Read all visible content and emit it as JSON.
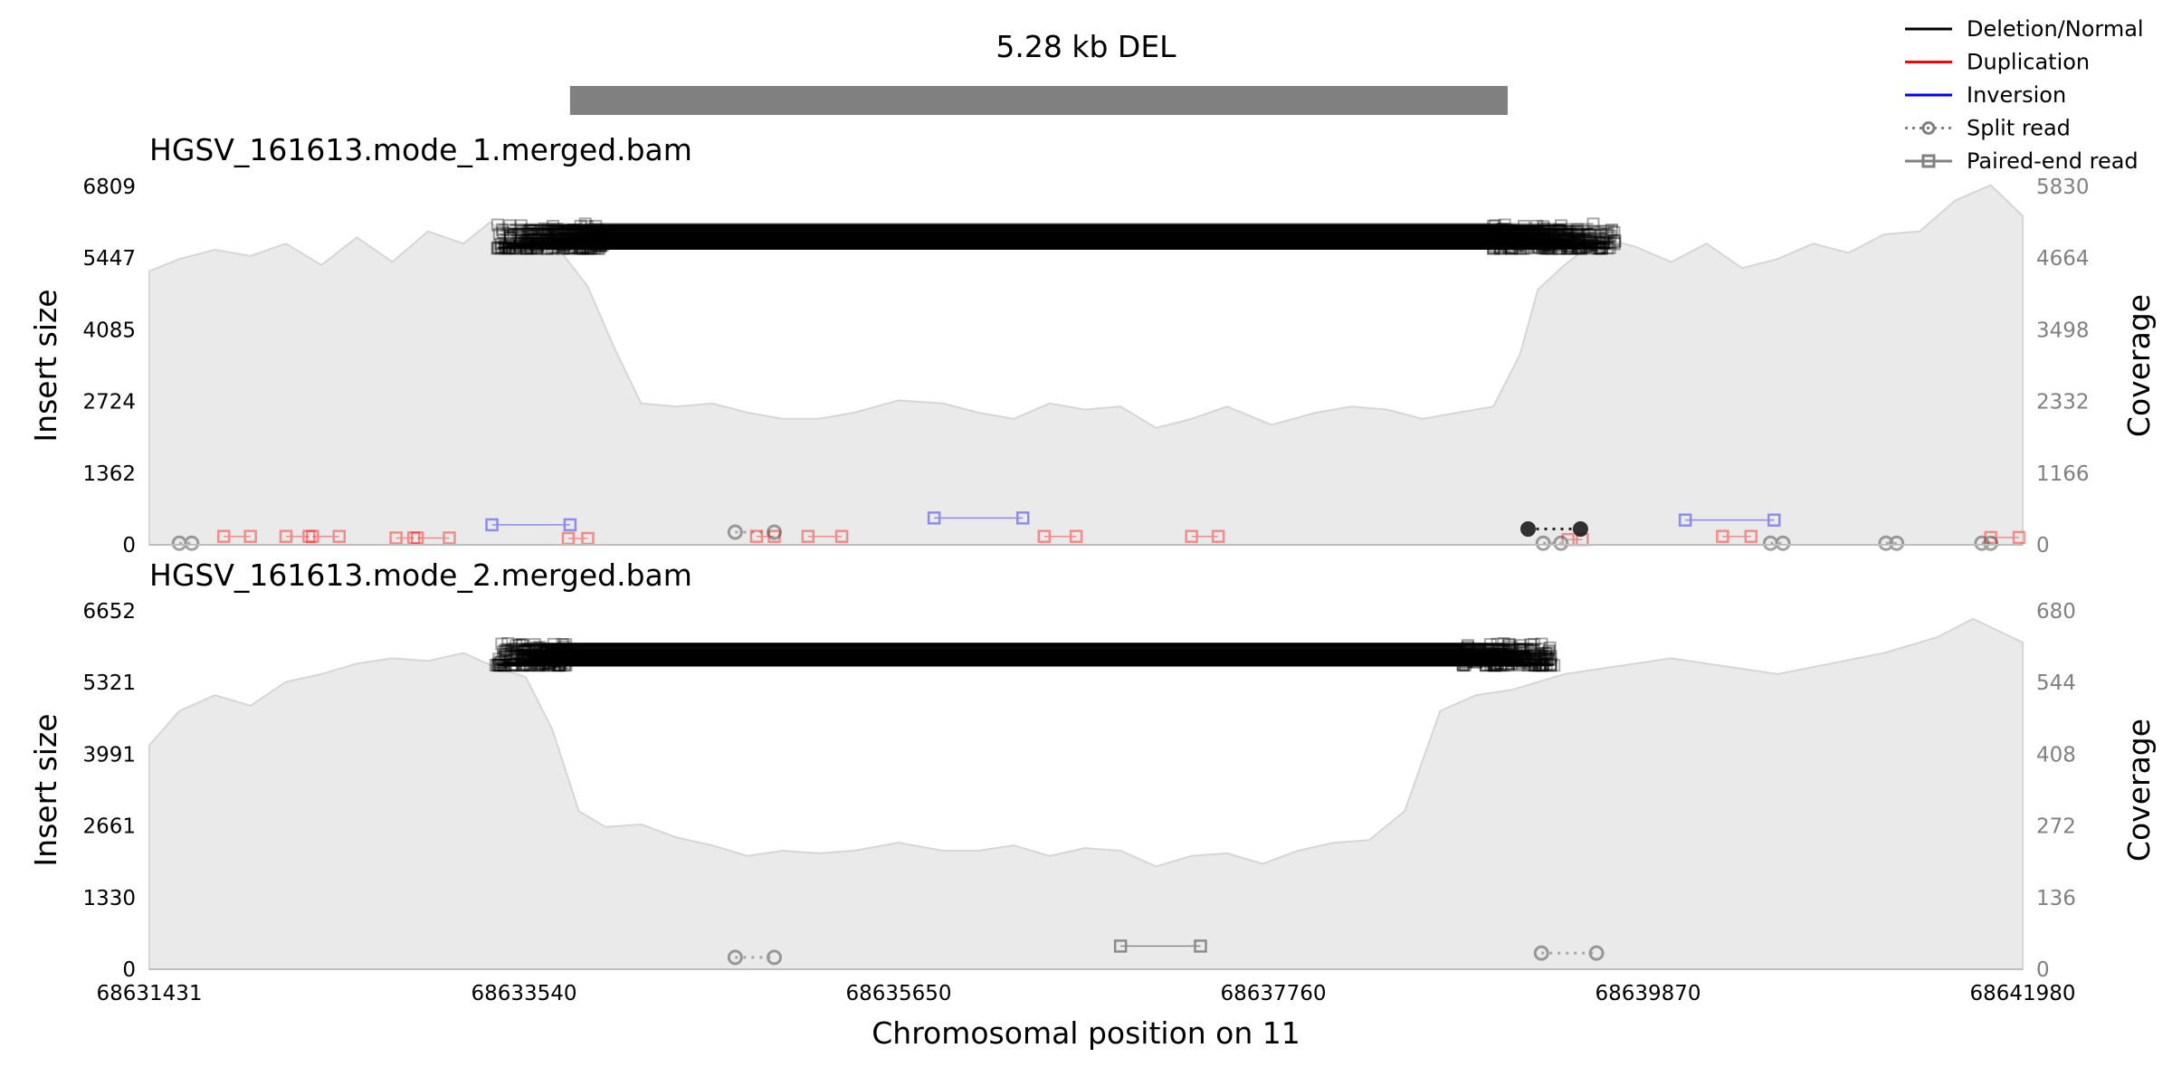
{
  "chart_data": {
    "type": "line",
    "title": "5.28 kb DEL",
    "sv": {
      "start": 68633800,
      "end": 68639080
    },
    "xlabel": "Chromosomal position on 11",
    "xlim": [
      68631431,
      68641980
    ],
    "xticks": [
      "68631431",
      "68633540",
      "68635650",
      "68637760",
      "68639870",
      "68641980"
    ],
    "legend": {
      "position": "top-right",
      "entries": [
        {
          "label": "Deletion/Normal",
          "color": "#000000",
          "style": "solid"
        },
        {
          "label": "Duplication",
          "color": "#ff0000",
          "style": "solid"
        },
        {
          "label": "Inversion",
          "color": "#0000ff",
          "style": "solid"
        },
        {
          "label": "Split read",
          "color": "#808080",
          "style": "dotted-circle"
        },
        {
          "label": "Paired-end read",
          "color": "#808080",
          "style": "solid-square"
        }
      ]
    },
    "panels": [
      {
        "title": "HGSV_161613.mode_1.merged.bam",
        "ylabel": "Insert size",
        "y2label": "Coverage",
        "yticks": [
          "0",
          "1362",
          "2724",
          "4085",
          "5447",
          "6809"
        ],
        "y2ticks": [
          "0",
          "1166",
          "2332",
          "3498",
          "4664",
          "5830"
        ],
        "ylim": [
          0,
          6809
        ],
        "y2lim": [
          0,
          5830
        ],
        "coverage": [
          [
            68631431,
            4450
          ],
          [
            68631600,
            4650
          ],
          [
            68631800,
            4800
          ],
          [
            68632000,
            4700
          ],
          [
            68632200,
            4900
          ],
          [
            68632400,
            4550
          ],
          [
            68632600,
            5000
          ],
          [
            68632800,
            4600
          ],
          [
            68633000,
            5100
          ],
          [
            68633200,
            4900
          ],
          [
            68633350,
            5250
          ],
          [
            68633500,
            4900
          ],
          [
            68633700,
            4950
          ],
          [
            68633900,
            4200
          ],
          [
            68634050,
            3200
          ],
          [
            68634200,
            2300
          ],
          [
            68634400,
            2250
          ],
          [
            68634600,
            2300
          ],
          [
            68634800,
            2150
          ],
          [
            68635000,
            2050
          ],
          [
            68635200,
            2050
          ],
          [
            68635400,
            2150
          ],
          [
            68635650,
            2350
          ],
          [
            68635900,
            2300
          ],
          [
            68636100,
            2150
          ],
          [
            68636300,
            2050
          ],
          [
            68636500,
            2300
          ],
          [
            68636700,
            2200
          ],
          [
            68636900,
            2250
          ],
          [
            68637100,
            1900
          ],
          [
            68637300,
            2050
          ],
          [
            68637500,
            2250
          ],
          [
            68637750,
            1950
          ],
          [
            68638000,
            2150
          ],
          [
            68638200,
            2250
          ],
          [
            68638400,
            2200
          ],
          [
            68638600,
            2050
          ],
          [
            68638800,
            2150
          ],
          [
            68639000,
            2250
          ],
          [
            68639150,
            3100
          ],
          [
            68639250,
            4150
          ],
          [
            68639400,
            4550
          ],
          [
            68639600,
            5000
          ],
          [
            68639800,
            4850
          ],
          [
            68640000,
            4600
          ],
          [
            68640200,
            4900
          ],
          [
            68640400,
            4500
          ],
          [
            68640600,
            4650
          ],
          [
            68640800,
            4900
          ],
          [
            68641000,
            4750
          ],
          [
            68641200,
            5050
          ],
          [
            68641400,
            5100
          ],
          [
            68641600,
            5600
          ],
          [
            68641800,
            5850
          ],
          [
            68641980,
            5350
          ]
        ],
        "deletion_reads": {
          "count": 400,
          "left": [
            68633390,
            68633990
          ],
          "right": [
            68638990,
            68639710
          ],
          "insert_size": [
            5630,
            6100
          ]
        },
        "split_reads": [
          {
            "start": 68634730,
            "end": 68634950,
            "insert_size": 240,
            "type": "normal"
          },
          {
            "start": 68639195,
            "end": 68639490,
            "insert_size": 300,
            "type": "deletion"
          },
          {
            "start": 68631600,
            "end": 68631670,
            "insert_size": 30,
            "type": "normal"
          },
          {
            "start": 68639280,
            "end": 68639380,
            "insert_size": 30,
            "type": "normal"
          },
          {
            "start": 68640560,
            "end": 68640630,
            "insert_size": 30,
            "type": "normal"
          },
          {
            "start": 68641210,
            "end": 68641270,
            "insert_size": 30,
            "type": "normal"
          },
          {
            "start": 68641750,
            "end": 68641800,
            "insert_size": 30,
            "type": "normal"
          }
        ],
        "discordant_pairs": [
          {
            "start": 68631850,
            "end": 68632000,
            "insert_size": 160,
            "type": "duplication"
          },
          {
            "start": 68632200,
            "end": 68632330,
            "insert_size": 160,
            "type": "duplication"
          },
          {
            "start": 68632350,
            "end": 68632500,
            "insert_size": 160,
            "type": "duplication"
          },
          {
            "start": 68632820,
            "end": 68632920,
            "insert_size": 130,
            "type": "duplication"
          },
          {
            "start": 68632940,
            "end": 68633120,
            "insert_size": 130,
            "type": "duplication"
          },
          {
            "start": 68633360,
            "end": 68633800,
            "insert_size": 380,
            "type": "inversion"
          },
          {
            "start": 68633790,
            "end": 68633900,
            "insert_size": 120,
            "type": "duplication"
          },
          {
            "start": 68634850,
            "end": 68634950,
            "insert_size": 160,
            "type": "duplication"
          },
          {
            "start": 68635140,
            "end": 68635330,
            "insert_size": 160,
            "type": "duplication"
          },
          {
            "start": 68635850,
            "end": 68636350,
            "insert_size": 510,
            "type": "inversion"
          },
          {
            "start": 68636470,
            "end": 68636650,
            "insert_size": 160,
            "type": "duplication"
          },
          {
            "start": 68637300,
            "end": 68637450,
            "insert_size": 160,
            "type": "duplication"
          },
          {
            "start": 68639420,
            "end": 68639500,
            "insert_size": 100,
            "type": "duplication"
          },
          {
            "start": 68640080,
            "end": 68640580,
            "insert_size": 470,
            "type": "inversion"
          },
          {
            "start": 68640290,
            "end": 68640450,
            "insert_size": 160,
            "type": "duplication"
          },
          {
            "start": 68641800,
            "end": 68641960,
            "insert_size": 140,
            "type": "duplication"
          }
        ]
      },
      {
        "title": "HGSV_161613.mode_2.merged.bam",
        "ylabel": "Insert size",
        "y2label": "Coverage",
        "yticks": [
          "0",
          "1330",
          "2661",
          "3991",
          "5321",
          "6652"
        ],
        "y2ticks": [
          "0",
          "136",
          "272",
          "408",
          "544",
          "680"
        ],
        "ylim": [
          0,
          6652
        ],
        "y2lim": [
          0,
          680
        ],
        "coverage": [
          [
            68631431,
            425
          ],
          [
            68631600,
            490
          ],
          [
            68631800,
            520
          ],
          [
            68632000,
            500
          ],
          [
            68632200,
            545
          ],
          [
            68632400,
            560
          ],
          [
            68632600,
            580
          ],
          [
            68632800,
            590
          ],
          [
            68633000,
            585
          ],
          [
            68633200,
            600
          ],
          [
            68633400,
            570
          ],
          [
            68633550,
            555
          ],
          [
            68633700,
            455
          ],
          [
            68633850,
            300
          ],
          [
            68634000,
            270
          ],
          [
            68634200,
            275
          ],
          [
            68634400,
            250
          ],
          [
            68634600,
            235
          ],
          [
            68634800,
            215
          ],
          [
            68635000,
            225
          ],
          [
            68635200,
            220
          ],
          [
            68635400,
            225
          ],
          [
            68635650,
            240
          ],
          [
            68635900,
            225
          ],
          [
            68636100,
            225
          ],
          [
            68636300,
            235
          ],
          [
            68636500,
            215
          ],
          [
            68636700,
            230
          ],
          [
            68636900,
            225
          ],
          [
            68637100,
            195
          ],
          [
            68637300,
            215
          ],
          [
            68637500,
            220
          ],
          [
            68637700,
            200
          ],
          [
            68637900,
            225
          ],
          [
            68638100,
            240
          ],
          [
            68638300,
            245
          ],
          [
            68638500,
            300
          ],
          [
            68638700,
            490
          ],
          [
            68638900,
            520
          ],
          [
            68639100,
            530
          ],
          [
            68639400,
            560
          ],
          [
            68639700,
            575
          ],
          [
            68640000,
            590
          ],
          [
            68640300,
            575
          ],
          [
            68640600,
            560
          ],
          [
            68640900,
            580
          ],
          [
            68641200,
            600
          ],
          [
            68641500,
            630
          ],
          [
            68641700,
            665
          ],
          [
            68641980,
            620
          ]
        ],
        "deletion_reads": {
          "count": 320,
          "left": [
            68633380,
            68633790
          ],
          "right": [
            68638820,
            68639350
          ],
          "insert_size": [
            5640,
            6050
          ]
        },
        "split_reads": [
          {
            "start": 68634730,
            "end": 68634950,
            "insert_size": 220,
            "type": "normal"
          },
          {
            "start": 68639270,
            "end": 68639580,
            "insert_size": 300,
            "type": "normal"
          }
        ],
        "discordant_pairs": [
          {
            "start": 68636900,
            "end": 68637350,
            "insert_size": 430,
            "type": "normal"
          }
        ]
      }
    ]
  }
}
